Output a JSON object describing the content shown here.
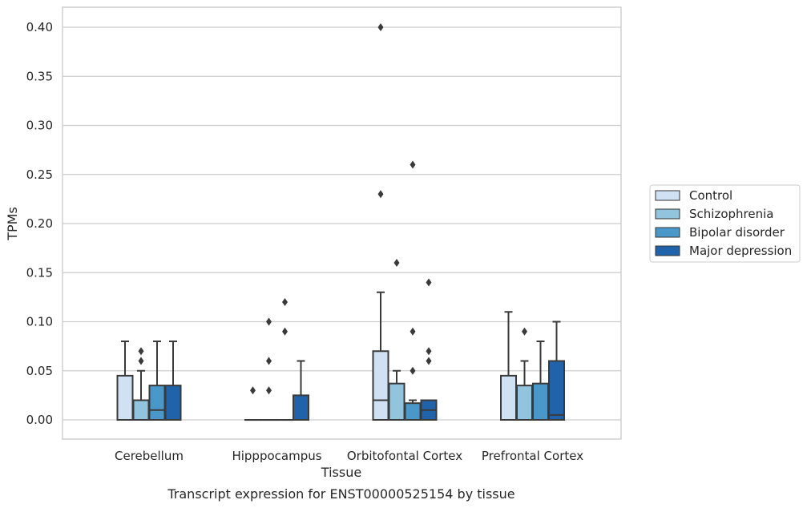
{
  "caption": "Transcript expression for ENST00000525154 by tissue",
  "chart_data": {
    "type": "box",
    "xlabel": "Tissue",
    "ylabel": "TPMs",
    "ylim": [
      -0.02,
      0.42
    ],
    "yticks": [
      0.0,
      0.05,
      0.1,
      0.15,
      0.2,
      0.25,
      0.3,
      0.35,
      0.4
    ],
    "ytick_labels": [
      "0.00",
      "0.05",
      "0.10",
      "0.15",
      "0.20",
      "0.25",
      "0.30",
      "0.35",
      "0.40"
    ],
    "grid": true,
    "legend_position": "right",
    "categories": [
      "Cerebellum",
      "Hipppocampus",
      "Orbitofontal Cortex",
      "Prefrontal Cortex"
    ],
    "series": [
      {
        "name": "Control",
        "color": "#cfe1f2",
        "boxes": [
          {
            "q1": 0.0,
            "median": 0.0,
            "q3": 0.045,
            "whisker_low": 0.0,
            "whisker_high": 0.08,
            "outliers": []
          },
          {
            "q1": 0.0,
            "median": 0.0,
            "q3": 0.0,
            "whisker_low": 0.0,
            "whisker_high": 0.0,
            "outliers": [
              0.03
            ]
          },
          {
            "q1": 0.0,
            "median": 0.02,
            "q3": 0.07,
            "whisker_low": 0.0,
            "whisker_high": 0.13,
            "outliers": [
              0.23,
              0.4
            ]
          },
          {
            "q1": 0.0,
            "median": 0.0,
            "q3": 0.045,
            "whisker_low": 0.0,
            "whisker_high": 0.11,
            "outliers": []
          }
        ]
      },
      {
        "name": "Schizophrenia",
        "color": "#93c4de",
        "boxes": [
          {
            "q1": 0.0,
            "median": 0.0,
            "q3": 0.02,
            "whisker_low": 0.0,
            "whisker_high": 0.05,
            "outliers": [
              0.06,
              0.07
            ]
          },
          {
            "q1": 0.0,
            "median": 0.0,
            "q3": 0.0,
            "whisker_low": 0.0,
            "whisker_high": 0.0,
            "outliers": [
              0.03,
              0.06,
              0.1
            ]
          },
          {
            "q1": 0.0,
            "median": 0.0,
            "q3": 0.037,
            "whisker_low": 0.0,
            "whisker_high": 0.05,
            "outliers": [
              0.16
            ]
          },
          {
            "q1": 0.0,
            "median": 0.0,
            "q3": 0.035,
            "whisker_low": 0.0,
            "whisker_high": 0.06,
            "outliers": [
              0.09
            ]
          }
        ]
      },
      {
        "name": "Bipolar disorder",
        "color": "#4a98c9",
        "boxes": [
          {
            "q1": 0.0,
            "median": 0.01,
            "q3": 0.035,
            "whisker_low": 0.0,
            "whisker_high": 0.08,
            "outliers": []
          },
          {
            "q1": 0.0,
            "median": 0.0,
            "q3": 0.0,
            "whisker_low": 0.0,
            "whisker_high": 0.0,
            "outliers": [
              0.09,
              0.12
            ]
          },
          {
            "q1": 0.0,
            "median": 0.0,
            "q3": 0.017,
            "whisker_low": 0.0,
            "whisker_high": 0.02,
            "outliers": [
              0.05,
              0.09,
              0.26
            ]
          },
          {
            "q1": 0.0,
            "median": 0.0,
            "q3": 0.037,
            "whisker_low": 0.0,
            "whisker_high": 0.08,
            "outliers": []
          }
        ]
      },
      {
        "name": "Major depression",
        "color": "#2163aa",
        "boxes": [
          {
            "q1": 0.0,
            "median": 0.0,
            "q3": 0.035,
            "whisker_low": 0.0,
            "whisker_high": 0.08,
            "outliers": []
          },
          {
            "q1": 0.0,
            "median": 0.0,
            "q3": 0.025,
            "whisker_low": 0.0,
            "whisker_high": 0.06,
            "outliers": []
          },
          {
            "q1": 0.0,
            "median": 0.01,
            "q3": 0.02,
            "whisker_low": 0.0,
            "whisker_high": 0.02,
            "outliers": [
              0.06,
              0.07,
              0.14
            ]
          },
          {
            "q1": 0.0,
            "median": 0.005,
            "q3": 0.06,
            "whisker_low": 0.0,
            "whisker_high": 0.1,
            "outliers": []
          }
        ]
      }
    ]
  }
}
